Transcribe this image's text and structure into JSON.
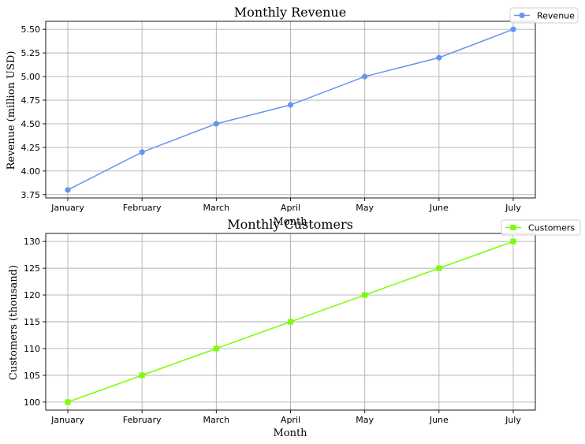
{
  "chart_data": [
    {
      "type": "line",
      "title": "Monthly Revenue",
      "xlabel": "Month",
      "ylabel": "Revenue (million USD)",
      "categories": [
        "January",
        "February",
        "March",
        "April",
        "May",
        "June",
        "July"
      ],
      "series": [
        {
          "name": "Revenue",
          "values": [
            3.8,
            4.2,
            4.5,
            4.7,
            5.0,
            5.2,
            5.5
          ],
          "color": "#6495ed",
          "marker": "circle"
        }
      ],
      "ylim": [
        3.715,
        5.585
      ],
      "yticks": [
        3.75,
        4.0,
        4.25,
        4.5,
        4.75,
        5.0,
        5.25,
        5.5
      ],
      "ytick_labels": [
        "3.75",
        "4.00",
        "4.25",
        "4.50",
        "4.75",
        "5.00",
        "5.25",
        "5.50"
      ],
      "grid": true,
      "legend": "top-right"
    },
    {
      "type": "line",
      "title": "Monthly Customers",
      "xlabel": "Month",
      "ylabel": "Customers (thousand)",
      "categories": [
        "January",
        "February",
        "March",
        "April",
        "May",
        "June",
        "July"
      ],
      "series": [
        {
          "name": "Customers",
          "values": [
            100,
            105,
            110,
            115,
            120,
            125,
            130
          ],
          "color": "#7cfc00",
          "marker": "square"
        }
      ],
      "ylim": [
        98.5,
        131.5
      ],
      "yticks": [
        100,
        105,
        110,
        115,
        120,
        125,
        130
      ],
      "ytick_labels": [
        "100",
        "105",
        "110",
        "115",
        "120",
        "125",
        "130"
      ],
      "grid": true,
      "legend": "top-right"
    }
  ]
}
